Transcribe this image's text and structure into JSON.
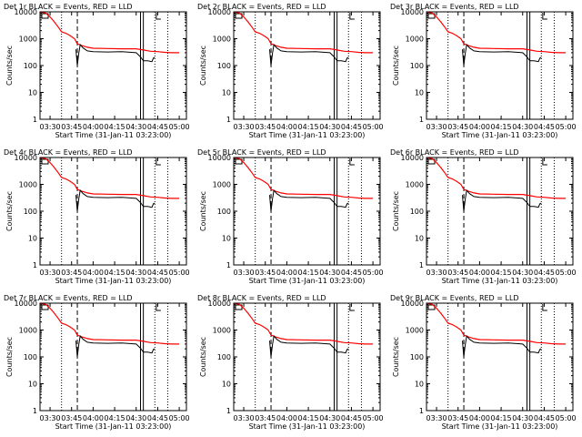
{
  "chart_data": {
    "type": "line",
    "shared": {
      "xlabel": "Start Time (31-Jan-11 03:23:00)",
      "ylabel": "Counts/sec",
      "xlim": [
        "03:23",
        "05:05"
      ],
      "ylim": [
        1,
        10000
      ],
      "yscale": "log",
      "xticks": [
        "03:30",
        "03:45",
        "04:00",
        "04:15",
        "04:30",
        "04:45",
        "05:00"
      ],
      "yticks": [
        "1",
        "10",
        "100",
        "1000",
        "10000"
      ],
      "colors": {
        "events": "#000000",
        "lld": "#ff0000"
      },
      "dotted_markers": [
        "03:38",
        "04:43",
        "04:52"
      ],
      "dashed_markers": [
        "03:49"
      ],
      "solid_markers": [
        "04:33",
        "04:35"
      ],
      "events": {
        "x": [
          "03:48",
          "03:49",
          "03:50",
          "03:51",
          "03:53",
          "03:56",
          "04:00",
          "04:10",
          "04:20",
          "04:30",
          "04:33",
          "04:35",
          "04:38",
          "04:41",
          "04:42",
          "04:43"
        ],
        "y": [
          400,
          100,
          280,
          600,
          450,
          350,
          330,
          320,
          330,
          300,
          210,
          150,
          150,
          140,
          190,
          200
        ]
      },
      "lld": {
        "x": [
          "03:23",
          "03:27",
          "03:30",
          "03:33",
          "03:36",
          "03:38",
          "03:41",
          "03:44",
          "03:47",
          "03:49",
          "03:52",
          "03:56",
          "04:00",
          "04:10",
          "04:20",
          "04:30",
          "04:35",
          "04:40",
          "04:45",
          "04:50",
          "04:55",
          "05:00"
        ],
        "y": [
          10000,
          9000,
          6500,
          4200,
          2600,
          1800,
          1600,
          1300,
          1000,
          650,
          560,
          480,
          440,
          430,
          420,
          420,
          380,
          340,
          330,
          310,
          300,
          300
        ]
      }
    },
    "panels": [
      {
        "title": "Det 1r BLACK = Events, RED = LLD"
      },
      {
        "title": "Det 2r BLACK = Events, RED = LLD"
      },
      {
        "title": "Det 3r BLACK = Events, RED = LLD"
      },
      {
        "title": "Det 4r BLACK = Events, RED = LLD"
      },
      {
        "title": "Det 5r BLACK = Events, RED = LLD"
      },
      {
        "title": "Det 6r BLACK = Events, RED = LLD"
      },
      {
        "title": "Det 7r BLACK = Events, RED = LLD"
      },
      {
        "title": "Det 8r BLACK = Events, RED = LLD"
      },
      {
        "title": "Det 9r BLACK = Events, RED = LLD"
      }
    ]
  }
}
